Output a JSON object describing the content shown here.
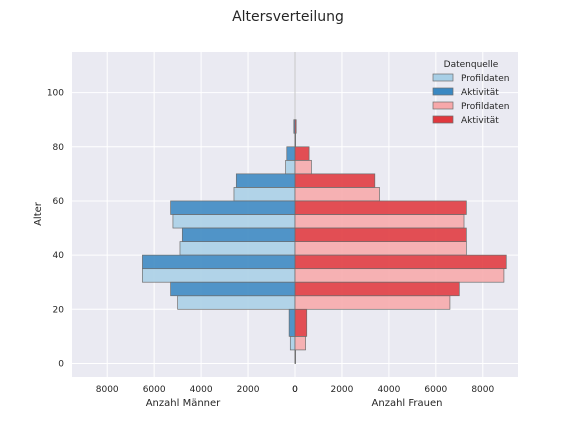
{
  "chart_data": {
    "type": "bar",
    "orientation": "horizontal",
    "title": "Altersverteilung",
    "ylabel": "Alter",
    "xlabel_left": "Anzahl Männer",
    "xlabel_right": "Anzahl Frauen",
    "ylim": [
      -5,
      115
    ],
    "yticks": [
      0,
      20,
      40,
      60,
      80,
      100
    ],
    "xlim_left": [
      9500,
      0
    ],
    "xlim_right": [
      0,
      9500
    ],
    "xticks_left": [
      8000,
      6000,
      4000,
      2000,
      0
    ],
    "xticks_right": [
      0,
      2000,
      4000,
      6000,
      8000
    ],
    "grid": true,
    "legend_position": "top-right",
    "legend_title": "Datenquelle",
    "series": [
      {
        "name": "Profildaten",
        "side": "left",
        "color": "#a8cfe6",
        "bars": [
          {
            "age_lo": 0,
            "age_hi": 5,
            "value": 0
          },
          {
            "age_lo": 5,
            "age_hi": 10,
            "value": 200
          },
          {
            "age_lo": 20,
            "age_hi": 25,
            "value": 5000
          },
          {
            "age_lo": 30,
            "age_hi": 35,
            "value": 6500
          },
          {
            "age_lo": 40,
            "age_hi": 45,
            "value": 4900
          },
          {
            "age_lo": 50,
            "age_hi": 55,
            "value": 5200
          },
          {
            "age_lo": 60,
            "age_hi": 65,
            "value": 2600
          },
          {
            "age_lo": 70,
            "age_hi": 75,
            "value": 400
          },
          {
            "age_lo": 80,
            "age_hi": 85,
            "value": 0
          }
        ]
      },
      {
        "name": "Aktivität",
        "side": "left",
        "color": "#3a88c2",
        "bars": [
          {
            "age_lo": 10,
            "age_hi": 20,
            "value": 250
          },
          {
            "age_lo": 25,
            "age_hi": 30,
            "value": 5300
          },
          {
            "age_lo": 35,
            "age_hi": 40,
            "value": 6500
          },
          {
            "age_lo": 45,
            "age_hi": 50,
            "value": 4800
          },
          {
            "age_lo": 55,
            "age_hi": 60,
            "value": 5300
          },
          {
            "age_lo": 65,
            "age_hi": 70,
            "value": 2500
          },
          {
            "age_lo": 75,
            "age_hi": 80,
            "value": 350
          },
          {
            "age_lo": 85,
            "age_hi": 90,
            "value": 50
          }
        ]
      },
      {
        "name": "Profildaten",
        "side": "right",
        "color": "#f7a8aa",
        "bars": [
          {
            "age_lo": 0,
            "age_hi": 5,
            "value": 0
          },
          {
            "age_lo": 5,
            "age_hi": 10,
            "value": 450
          },
          {
            "age_lo": 20,
            "age_hi": 25,
            "value": 6600
          },
          {
            "age_lo": 30,
            "age_hi": 35,
            "value": 8900
          },
          {
            "age_lo": 40,
            "age_hi": 45,
            "value": 7300
          },
          {
            "age_lo": 50,
            "age_hi": 55,
            "value": 7200
          },
          {
            "age_lo": 60,
            "age_hi": 65,
            "value": 3600
          },
          {
            "age_lo": 70,
            "age_hi": 75,
            "value": 700
          },
          {
            "age_lo": 80,
            "age_hi": 85,
            "value": 0
          }
        ]
      },
      {
        "name": "Aktivität",
        "side": "right",
        "color": "#e0383e",
        "bars": [
          {
            "age_lo": 10,
            "age_hi": 20,
            "value": 500
          },
          {
            "age_lo": 25,
            "age_hi": 30,
            "value": 7000
          },
          {
            "age_lo": 35,
            "age_hi": 40,
            "value": 9000
          },
          {
            "age_lo": 45,
            "age_hi": 50,
            "value": 7300
          },
          {
            "age_lo": 55,
            "age_hi": 60,
            "value": 7300
          },
          {
            "age_lo": 65,
            "age_hi": 70,
            "value": 3400
          },
          {
            "age_lo": 75,
            "age_hi": 80,
            "value": 600
          },
          {
            "age_lo": 85,
            "age_hi": 90,
            "value": 50
          }
        ]
      }
    ]
  }
}
